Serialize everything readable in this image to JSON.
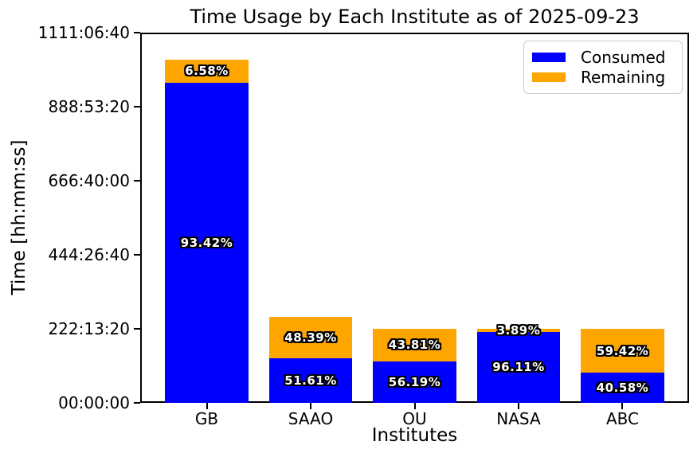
{
  "chart_data": {
    "type": "bar",
    "stacked": true,
    "title": "Time Usage by Each Institute as of 2025-09-23",
    "xlabel": "Institutes",
    "ylabel": "Time [hh:mm:ss]",
    "categories": [
      "GB",
      "SAAO",
      "OU",
      "NASA",
      "ABC"
    ],
    "series": [
      {
        "name": "Consumed",
        "color": "#0000ff",
        "values_seconds": [
          3462145,
          481545,
          449520,
          768880,
          324640
        ],
        "percent_labels": [
          "93.42%",
          "51.61%",
          "56.19%",
          "96.11%",
          "40.58%"
        ]
      },
      {
        "name": "Remaining",
        "color": "#ffa500",
        "values_seconds": [
          243855,
          451500,
          350480,
          31120,
          475360
        ],
        "percent_labels": [
          "6.58%",
          "48.39%",
          "43.81%",
          "3.89%",
          "59.42%"
        ]
      }
    ],
    "bar_totals_seconds_estimated": [
      3706000,
      933045,
      800000,
      800000,
      800000
    ],
    "y_ticks": [
      "00:00:00",
      "222:13:20",
      "444:26:40",
      "666:40:00",
      "888:53:20",
      "1111:06:40"
    ],
    "ylim_seconds": [
      0,
      4000000
    ],
    "legend_position": "upper right",
    "grid": false,
    "bar_label_text_color": "#ffffff",
    "bar_label_outline_color": "#000000",
    "axes_color": "#000000",
    "background_color": "#ffffff"
  }
}
